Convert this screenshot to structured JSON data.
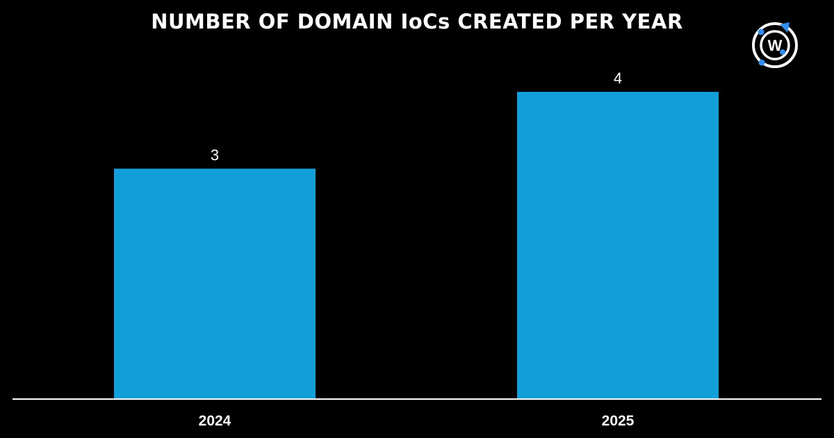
{
  "colors": {
    "background": "#000000",
    "bar": "#129ed8",
    "text": "#ffffff",
    "logo_accent": "#2f8ff0"
  },
  "logo": {
    "icon": "watchtowr-logo-icon",
    "letter": "W"
  },
  "chart_data": {
    "type": "bar",
    "title": "NUMBER OF DOMAIN IoCs CREATED PER YEAR",
    "categories": [
      "2024",
      "2025"
    ],
    "values": [
      3,
      4
    ],
    "data_labels": [
      "3",
      "4"
    ],
    "xlabel": "",
    "ylabel": "",
    "ylim": [
      0,
      4.2
    ],
    "grid": false,
    "legend": "none"
  }
}
